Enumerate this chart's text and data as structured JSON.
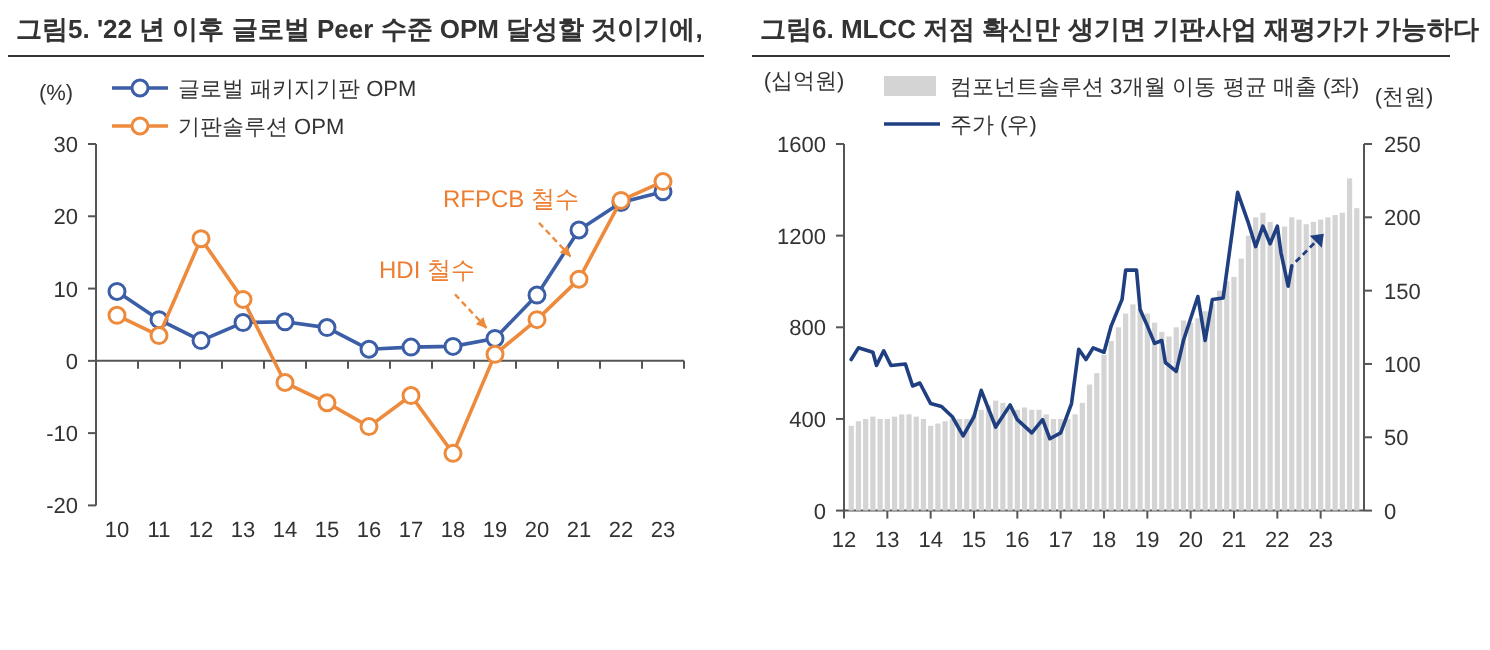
{
  "chart_data": [
    {
      "type": "line",
      "title": "그림5. '22 년 이후 글로벌 Peer 수준 OPM 달성할 것이기에,",
      "ylabel": "(%)",
      "categories": [
        "10",
        "11",
        "12",
        "13",
        "14",
        "15",
        "16",
        "17",
        "18",
        "19",
        "20",
        "21",
        "22",
        "23"
      ],
      "series": [
        {
          "name": "글로벌 패키지기판 OPM",
          "color": "#3b5ea6",
          "values": [
            9.6,
            5.7,
            2.8,
            5.3,
            5.4,
            4.6,
            1.6,
            1.9,
            2.0,
            3.1,
            9.1,
            18.1,
            21.9,
            23.4
          ]
        },
        {
          "name": "기판솔루션 OPM",
          "color": "#ed8a3c",
          "values": [
            6.3,
            3.5,
            16.9,
            8.5,
            -3.0,
            -5.8,
            -9.1,
            -4.8,
            -12.8,
            0.9,
            5.7,
            11.3,
            22.2,
            24.8
          ]
        }
      ],
      "ylim": [
        -20,
        30
      ],
      "yticks": [
        -20,
        -10,
        0,
        10,
        20,
        30
      ],
      "marker": "circle",
      "legend": "top left",
      "annotations": [
        {
          "text": "HDI 철수",
          "x": "19",
          "y": 3.1
        },
        {
          "text": "RFPCB 철수",
          "x": "21",
          "y": 13
        }
      ]
    },
    {
      "type": "bar",
      "title": "그림6. MLCC 저점 확신만 생기면 기판사업 재평가가 가능하다",
      "ylabel": "(십억원)",
      "y2label": "(천원)",
      "series": [
        {
          "name": "컴포넌트솔루션 3개월 이동 평균 매출 (좌)",
          "type": "bar",
          "color": "#d4d4d4",
          "x": [
            "2012-03",
            "2012-05",
            "2012-07",
            "2012-09",
            "2012-11",
            "2013-01",
            "2013-03",
            "2013-05",
            "2013-07",
            "2013-09",
            "2013-11",
            "2014-01",
            "2014-03",
            "2014-05",
            "2014-07",
            "2014-09",
            "2014-11",
            "2015-01",
            "2015-03",
            "2015-05",
            "2015-07",
            "2015-09",
            "2015-11",
            "2016-01",
            "2016-03",
            "2016-05",
            "2016-07",
            "2016-09",
            "2016-11",
            "2017-01",
            "2017-03",
            "2017-05",
            "2017-07",
            "2017-09",
            "2017-11",
            "2018-01",
            "2018-03",
            "2018-05",
            "2018-07",
            "2018-09",
            "2018-11",
            "2019-01",
            "2019-03",
            "2019-05",
            "2019-07",
            "2019-09",
            "2019-11",
            "2020-01",
            "2020-03",
            "2020-05",
            "2020-07",
            "2020-09",
            "2020-11",
            "2021-01",
            "2021-03",
            "2021-05",
            "2021-07",
            "2021-09",
            "2021-11",
            "2022-01",
            "2022-03",
            "2022-05",
            "2022-07",
            "2022-09",
            "2022-11",
            "2023-01",
            "2023-03",
            "2023-05",
            "2023-07",
            "2023-09",
            "2023-11"
          ],
          "values": [
            370,
            390,
            400,
            410,
            400,
            400,
            410,
            420,
            420,
            410,
            400,
            370,
            380,
            390,
            400,
            400,
            400,
            420,
            440,
            460,
            480,
            470,
            440,
            440,
            450,
            440,
            440,
            420,
            400,
            400,
            400,
            420,
            470,
            550,
            600,
            680,
            740,
            800,
            860,
            900,
            880,
            860,
            820,
            780,
            760,
            800,
            830,
            820,
            840,
            870,
            900,
            960,
            1000,
            1020,
            1100,
            1200,
            1280,
            1300,
            1260,
            1220,
            1240,
            1280,
            1270,
            1250,
            1260,
            1270,
            1280,
            1290,
            1300,
            1450,
            1320
          ]
        },
        {
          "name": "주가 (우)",
          "type": "line",
          "axis": "y2",
          "color": "#1f3f80",
          "x": [
            "2012-03",
            "2012-05",
            "2012-09",
            "2012-10",
            "2012-12",
            "2013-02",
            "2013-06",
            "2013-08",
            "2013-10",
            "2014-01",
            "2014-04",
            "2014-07",
            "2014-10",
            "2015-01",
            "2015-03",
            "2015-07",
            "2015-11",
            "2016-01",
            "2016-05",
            "2016-08",
            "2016-10",
            "2017-01",
            "2017-04",
            "2017-06",
            "2017-08",
            "2017-10",
            "2018-01",
            "2018-03",
            "2018-06",
            "2018-07",
            "2018-10",
            "2018-11",
            "2019-01",
            "2019-03",
            "2019-05",
            "2019-06",
            "2019-09",
            "2019-11",
            "2020-03",
            "2020-05",
            "2020-07",
            "2020-10",
            "2021-02",
            "2021-05",
            "2021-07",
            "2021-09",
            "2021-11",
            "2022-01",
            "2022-02",
            "2022-04",
            "2022-05"
          ],
          "values": [
            103,
            111,
            108,
            99,
            109,
            99,
            100,
            85,
            87,
            73,
            71,
            64,
            51,
            64,
            82,
            57,
            72,
            62,
            53,
            62,
            49,
            53,
            73,
            110,
            103,
            111,
            108,
            126,
            144,
            164,
            164,
            137,
            126,
            114,
            116,
            101,
            95,
            116,
            146,
            116,
            144,
            145,
            217,
            196,
            180,
            194,
            182,
            194,
            176,
            153,
            167
          ]
        }
      ],
      "xlim": [
        "2012-01",
        "2024-01"
      ],
      "xticks": [
        {
          "value": "2012-01",
          "label": "12"
        },
        {
          "value": "2013-01",
          "label": "13"
        },
        {
          "value": "2014-01",
          "label": "14"
        },
        {
          "value": "2015-01",
          "label": "15"
        },
        {
          "value": "2016-01",
          "label": "16"
        },
        {
          "value": "2017-01",
          "label": "17"
        },
        {
          "value": "2018-01",
          "label": "18"
        },
        {
          "value": "2019-01",
          "label": "19"
        },
        {
          "value": "2020-01",
          "label": "20"
        },
        {
          "value": "2021-01",
          "label": "21"
        },
        {
          "value": "2022-01",
          "label": "22"
        },
        {
          "value": "2023-01",
          "label": "23"
        }
      ],
      "ylim": [
        0,
        1600
      ],
      "yticks": [
        0,
        400,
        800,
        1200,
        1600
      ],
      "y2lim": [
        0,
        250
      ],
      "y2ticks": [
        0,
        50,
        100,
        150,
        200,
        250
      ],
      "legend": "top"
    }
  ]
}
